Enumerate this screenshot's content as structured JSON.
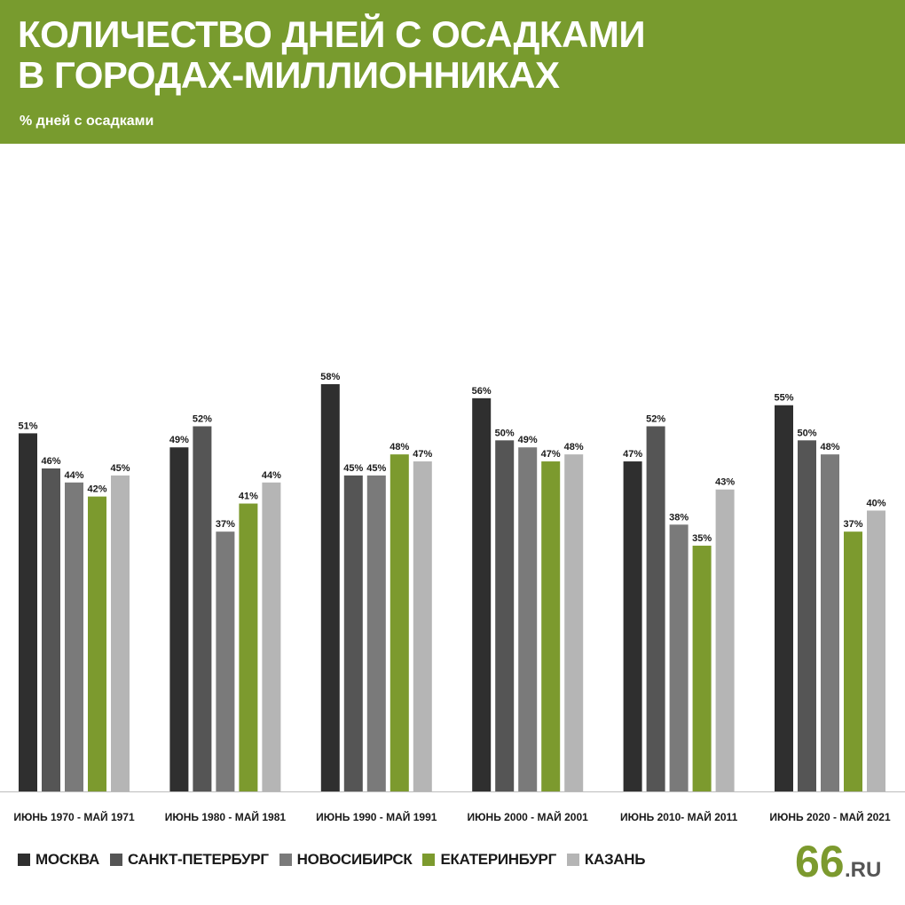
{
  "header": {
    "title_line1": "КОЛИЧЕСТВО ДНЕЙ С ОСАДКАМИ",
    "title_line2": "В ГОРОДАХ-МИЛЛИОННИКАХ",
    "subtitle": "% дней с осадками"
  },
  "logo": {
    "number": "66",
    "suffix": ".RU",
    "icon": "66-ru-logo"
  },
  "colors": {
    "header_bg": "#789b2e",
    "moscow": "#2f2f2f",
    "spb": "#555555",
    "novosibirsk": "#7a7a7a",
    "ekaterinburg": "#7c9a2e",
    "kazan": "#b5b5b5",
    "logo_green": "#7c9a2e"
  },
  "chart_data": {
    "type": "bar",
    "title": "КОЛИЧЕСТВО ДНЕЙ С ОСАДКАМИ В ГОРОДАХ-МИЛЛИОННИКАХ",
    "subtitle": "% дней с осадками",
    "categories": [
      "ИЮНЬ 1970 - МАЙ 1971",
      "ИЮНЬ 1980 - МАЙ 1981",
      "ИЮНЬ 1990 - МАЙ 1991",
      "ИЮНЬ 2000 - МАЙ 2001",
      "ИЮНЬ 2010- МАЙ 2011",
      "ИЮНЬ 2020 - МАЙ 2021"
    ],
    "series": [
      {
        "name": "МОСКВА",
        "color": "#2f2f2f",
        "values": [
          51,
          49,
          58,
          56,
          47,
          55
        ]
      },
      {
        "name": "САНКТ-ПЕТЕРБУРГ",
        "color": "#555555",
        "values": [
          46,
          52,
          45,
          50,
          52,
          50
        ]
      },
      {
        "name": "НОВОСИБИРСК",
        "color": "#7a7a7a",
        "values": [
          44,
          37,
          45,
          49,
          38,
          48
        ]
      },
      {
        "name": "ЕКАТЕРИНБУРГ",
        "color": "#7c9a2e",
        "values": [
          42,
          41,
          48,
          47,
          35,
          37
        ]
      },
      {
        "name": "КАЗАНЬ",
        "color": "#b5b5b5",
        "values": [
          45,
          44,
          47,
          48,
          43,
          40
        ]
      }
    ],
    "value_suffix": "%",
    "ylim": [
      0,
      58
    ],
    "grid": false,
    "legend": "bottom-left"
  }
}
